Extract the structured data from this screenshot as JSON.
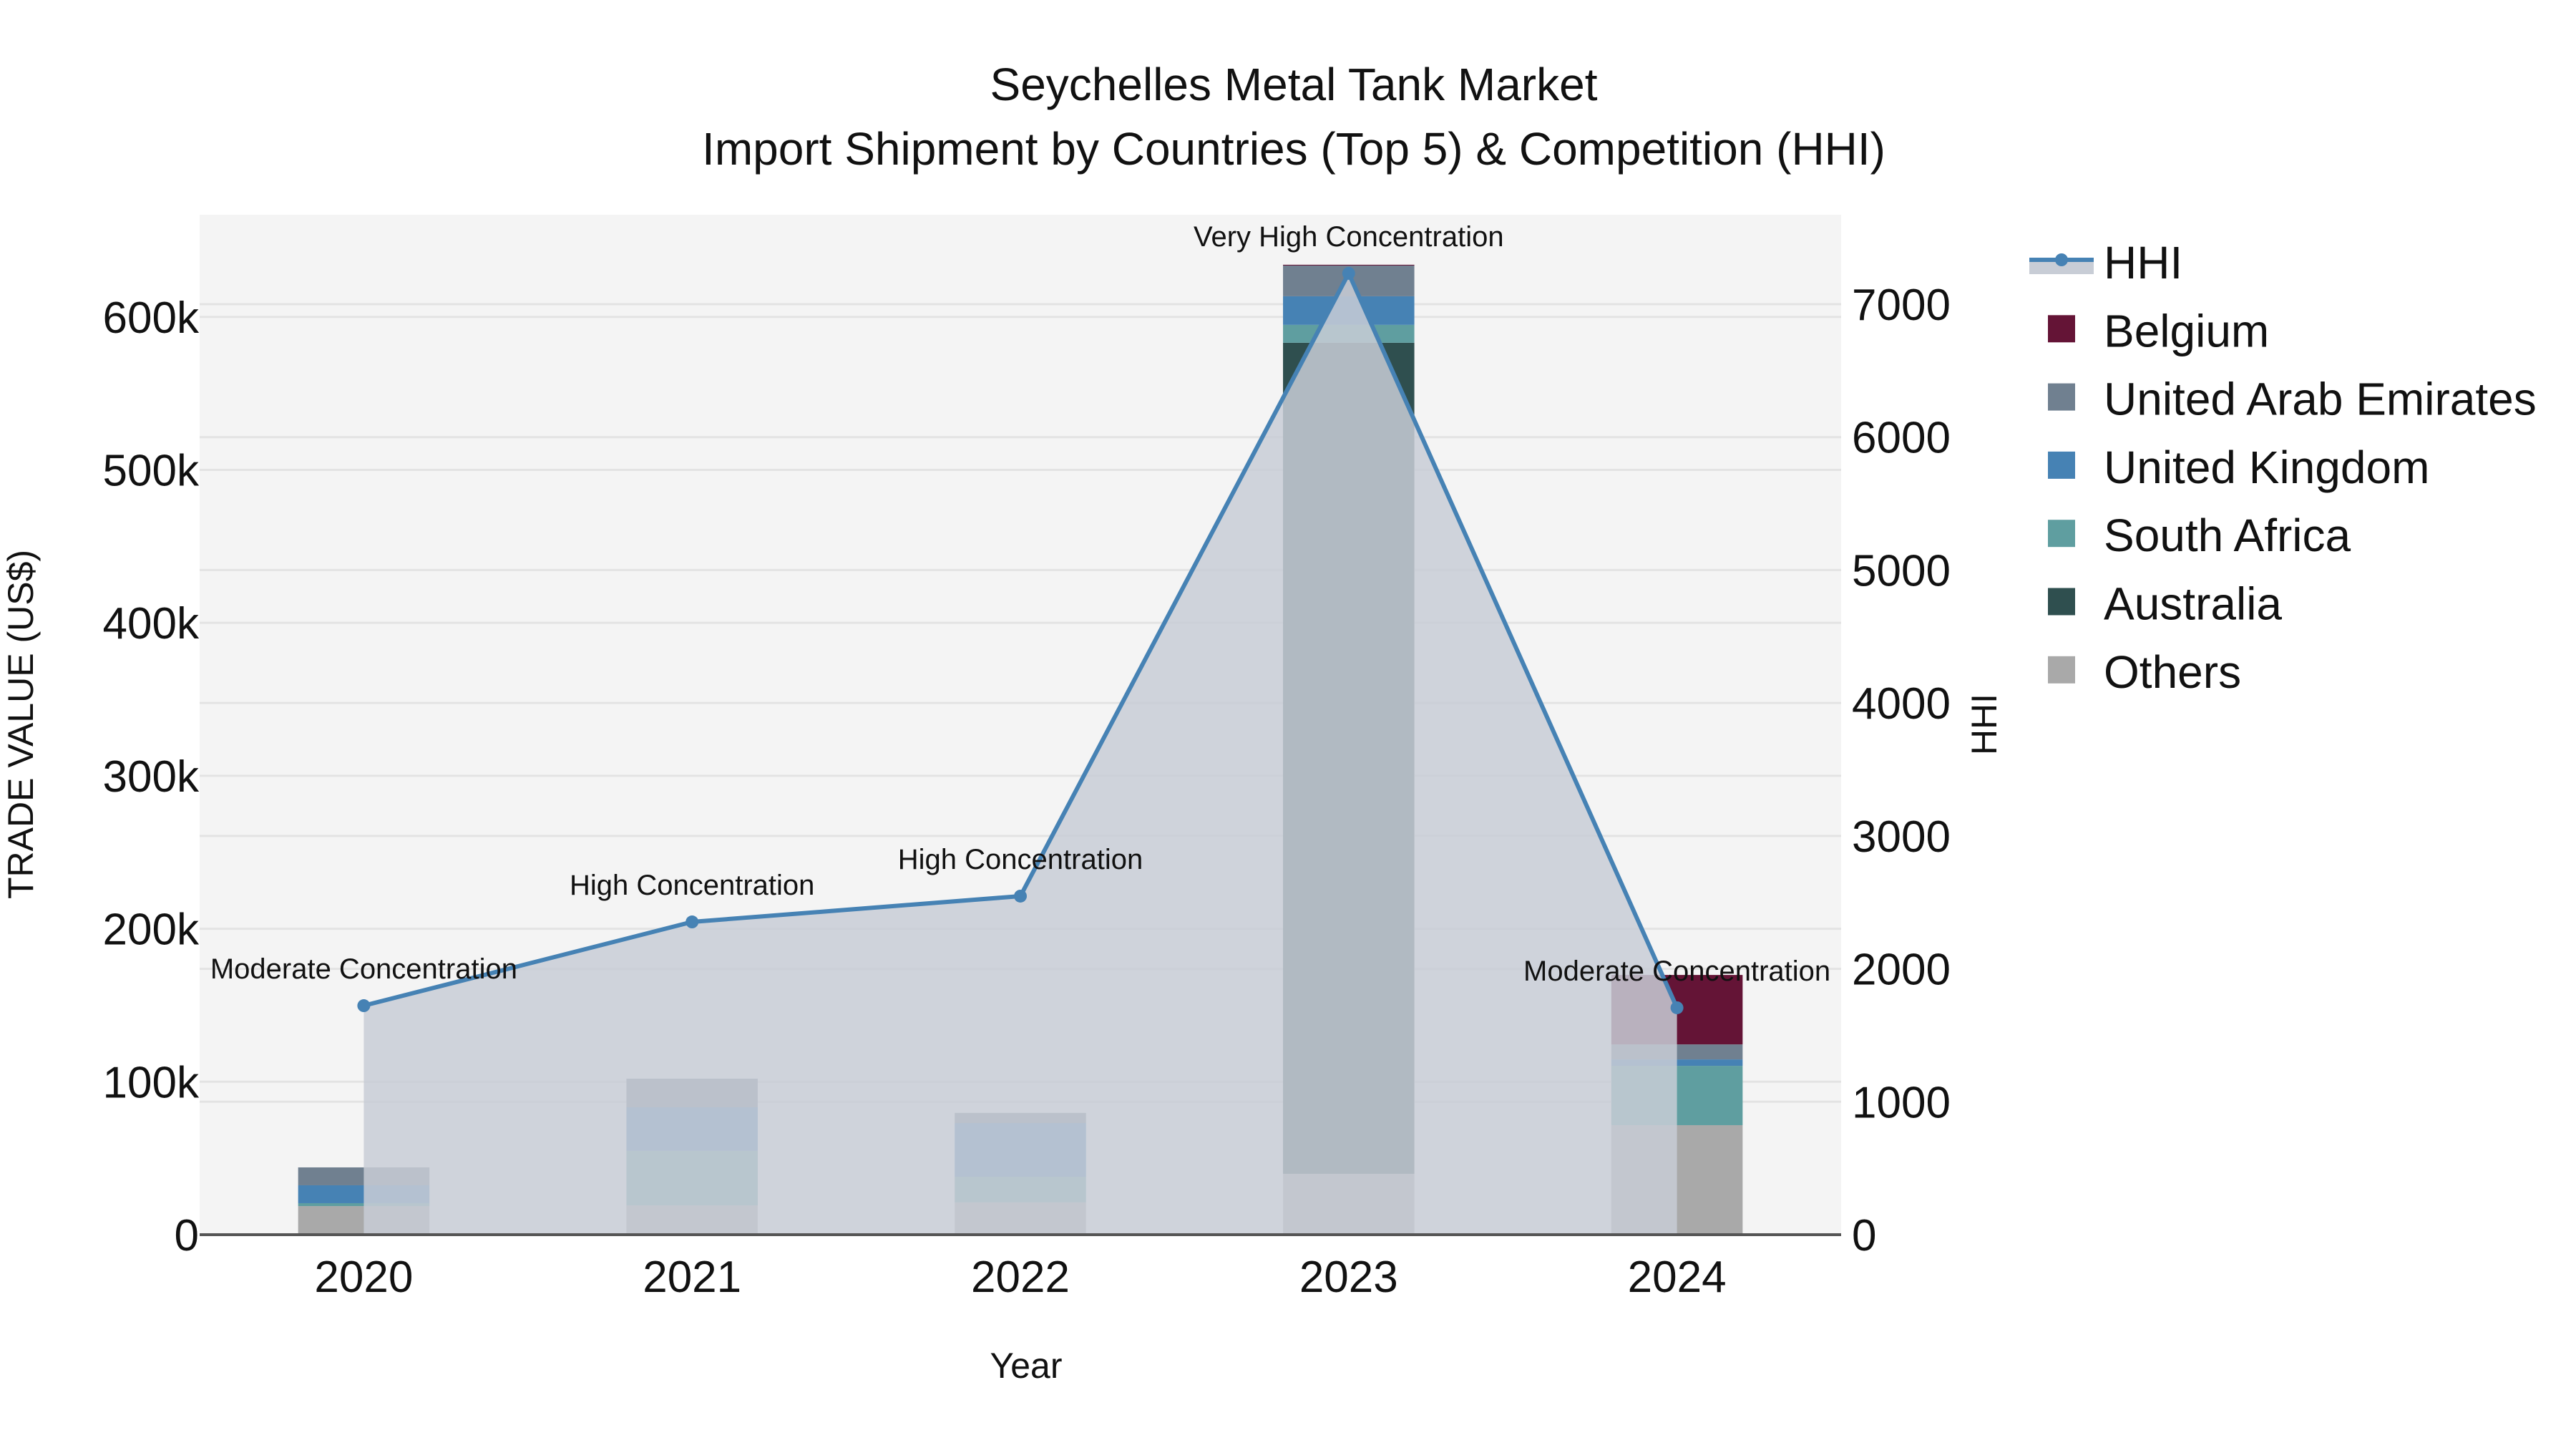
{
  "title_line1": "Seychelles Metal Tank Market",
  "title_line2": "Import Shipment by Countries (Top 5) & Competition (HHI)",
  "colors": {
    "plot_bg": "#f4f4f4",
    "grid": "#e3e3e3",
    "axis_line": "#555555",
    "hhi_line": "#4682b4",
    "hhi_fill": "#c8cdd6"
  },
  "legend": [
    {
      "name": "HHI",
      "type": "line",
      "color": "#4682b4"
    },
    {
      "name": "Belgium",
      "type": "box",
      "color": "#641436"
    },
    {
      "name": "United Arab Emirates",
      "type": "box",
      "color": "#708090"
    },
    {
      "name": "United Kingdom",
      "type": "box",
      "color": "#4682b4"
    },
    {
      "name": "South Africa",
      "type": "box",
      "color": "#5f9ea0"
    },
    {
      "name": "Australia",
      "type": "box",
      "color": "#2f4f4f"
    },
    {
      "name": "Others",
      "type": "box",
      "color": "#a9a9a9"
    }
  ],
  "chart_data": {
    "type": "bar",
    "subtype": "stacked bar + line (secondary axis) with filled area",
    "title": "Seychelles Metal Tank Market — Import Shipment by Countries (Top 5) & Competition (HHI)",
    "xlabel": "Year",
    "ylabel": "TRADE VALUE (US$)",
    "y2label": "HHI",
    "categories": [
      "2020",
      "2021",
      "2022",
      "2023",
      "2024"
    ],
    "ylim": [
      0,
      666800
    ],
    "y2lim": [
      0,
      7673
    ],
    "yticks": [
      0,
      100000,
      200000,
      300000,
      400000,
      500000,
      600000
    ],
    "ytick_labels": [
      "0",
      "100k",
      "200k",
      "300k",
      "400k",
      "500k",
      "600k"
    ],
    "y2ticks": [
      0,
      1000,
      2000,
      3000,
      4000,
      5000,
      6000,
      7000
    ],
    "y2tick_labels": [
      "0",
      "1000",
      "2000",
      "3000",
      "4000",
      "5000",
      "6000",
      "7000"
    ],
    "grid": true,
    "legend_position": "right",
    "stack_order_bottom_to_top": [
      "Others",
      "Australia",
      "South Africa",
      "United Kingdom",
      "United Arab Emirates",
      "Belgium"
    ],
    "series": [
      {
        "name": "Others",
        "color": "#a9a9a9",
        "values": [
          18700,
          19200,
          21100,
          39800,
          71600
        ]
      },
      {
        "name": "Australia",
        "color": "#2f4f4f",
        "values": [
          0,
          0,
          0,
          543300,
          0
        ]
      },
      {
        "name": "South Africa",
        "color": "#5f9ea0",
        "values": [
          1900,
          35600,
          16800,
          11700,
          38800
        ]
      },
      {
        "name": "United Kingdom",
        "color": "#4682b4",
        "values": [
          11700,
          28500,
          35100,
          18700,
          4200
        ]
      },
      {
        "name": "United Arab Emirates",
        "color": "#708090",
        "values": [
          11700,
          18700,
          6600,
          20100,
          9800
        ]
      },
      {
        "name": "Belgium",
        "color": "#641436",
        "values": [
          0,
          0,
          0,
          500,
          45400
        ]
      }
    ],
    "totals": [
      44000,
      102000,
      79600,
      634100,
      169800
    ],
    "line_series": {
      "name": "HHI",
      "axis": "y2",
      "color": "#4682b4",
      "values": [
        1723,
        2353,
        2547,
        7232,
        1707
      ]
    },
    "annotations": [
      {
        "category": "2020",
        "text": "Moderate Concentration"
      },
      {
        "category": "2021",
        "text": "High Concentration"
      },
      {
        "category": "2022",
        "text": "High Concentration"
      },
      {
        "category": "2023",
        "text": "Very High Concentration"
      },
      {
        "category": "2024",
        "text": "Moderate Concentration"
      }
    ]
  }
}
